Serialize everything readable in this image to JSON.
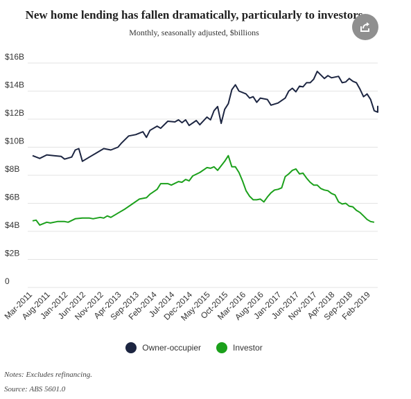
{
  "chart_data": {
    "type": "line",
    "title": "New home lending has fallen dramatically, particularly to investors",
    "subtitle": "Monthly, seasonally adjusted, $billions",
    "xlabel": "",
    "ylabel": "",
    "x_tick_labels": [
      "Mar-2011",
      "Aug-2011",
      "Jan-2012",
      "Jun-2012",
      "Nov-2012",
      "Apr-2013",
      "Sep-2013",
      "Feb-2014",
      "Jul-2014",
      "Dec-2014",
      "May-2015",
      "Oct-2015",
      "Mar-2016",
      "Aug-2016",
      "Jan-2017",
      "Jun-2017",
      "Nov-2017",
      "Apr-2018",
      "Sep-2018",
      "Feb-2019"
    ],
    "y_tick_labels": [
      "0",
      "$2B",
      "$4B",
      "$6B",
      "$8B",
      "$10B",
      "$12B",
      "$14B",
      "$16B"
    ],
    "y_ticks": [
      0,
      2,
      4,
      6,
      8,
      10,
      12,
      14,
      16
    ],
    "ylim": [
      0,
      16
    ],
    "x_range": [
      "Mar-2011",
      "Apr-2019"
    ],
    "grid": "horizontal",
    "legend_position": "bottom",
    "series": [
      {
        "name": "Owner-occupier",
        "color": "#1c2541",
        "points": [
          [
            "Mar-2011",
            9.4
          ],
          [
            "May-2011",
            9.2
          ],
          [
            "Jul-2011",
            9.45
          ],
          [
            "Sep-2011",
            9.4
          ],
          [
            "Nov-2011",
            9.35
          ],
          [
            "Dec-2011",
            9.15
          ],
          [
            "Feb-2012",
            9.3
          ],
          [
            "Mar-2012",
            9.8
          ],
          [
            "Apr-2012",
            9.9
          ],
          [
            "May-2012",
            9.0
          ],
          [
            "Jul-2012",
            9.3
          ],
          [
            "Sep-2012",
            9.6
          ],
          [
            "Nov-2012",
            9.9
          ],
          [
            "Jan-2013",
            9.8
          ],
          [
            "Mar-2013",
            10.0
          ],
          [
            "Apr-2013",
            10.3
          ],
          [
            "Jun-2013",
            10.8
          ],
          [
            "Aug-2013",
            10.9
          ],
          [
            "Oct-2013",
            11.1
          ],
          [
            "Nov-2013",
            10.7
          ],
          [
            "Dec-2013",
            11.2
          ],
          [
            "Feb-2014",
            11.5
          ],
          [
            "Mar-2014",
            11.35
          ],
          [
            "May-2014",
            11.85
          ],
          [
            "Jul-2014",
            11.8
          ],
          [
            "Aug-2014",
            11.95
          ],
          [
            "Sep-2014",
            11.75
          ],
          [
            "Oct-2014",
            11.95
          ],
          [
            "Nov-2014",
            11.55
          ],
          [
            "Jan-2015",
            11.9
          ],
          [
            "Feb-2015",
            11.6
          ],
          [
            "Apr-2015",
            12.15
          ],
          [
            "May-2015",
            11.95
          ],
          [
            "Jun-2015",
            12.6
          ],
          [
            "Jul-2015",
            12.9
          ],
          [
            "Aug-2015",
            11.7
          ],
          [
            "Sep-2015",
            12.7
          ],
          [
            "Oct-2015",
            13.1
          ],
          [
            "Nov-2015",
            14.1
          ],
          [
            "Dec-2015",
            14.45
          ],
          [
            "Jan-2016",
            14.0
          ],
          [
            "Mar-2016",
            13.8
          ],
          [
            "Apr-2016",
            13.5
          ],
          [
            "May-2016",
            13.6
          ],
          [
            "Jun-2016",
            13.2
          ],
          [
            "Jul-2016",
            13.5
          ],
          [
            "Sep-2016",
            13.4
          ],
          [
            "Oct-2016",
            13.0
          ],
          [
            "Dec-2016",
            13.15
          ],
          [
            "Feb-2017",
            13.5
          ],
          [
            "Mar-2017",
            14.0
          ],
          [
            "Apr-2017",
            14.2
          ],
          [
            "May-2017",
            13.95
          ],
          [
            "Jun-2017",
            14.35
          ],
          [
            "Jul-2017",
            14.3
          ],
          [
            "Aug-2017",
            14.6
          ],
          [
            "Sep-2017",
            14.6
          ],
          [
            "Oct-2017",
            14.85
          ],
          [
            "Nov-2017",
            15.4
          ],
          [
            "Jan-2018",
            14.9
          ],
          [
            "Feb-2018",
            15.1
          ],
          [
            "Mar-2018",
            14.95
          ],
          [
            "May-2018",
            15.05
          ],
          [
            "Jun-2018",
            14.6
          ],
          [
            "Jul-2018",
            14.65
          ],
          [
            "Aug-2018",
            14.9
          ],
          [
            "Sep-2018",
            14.7
          ],
          [
            "Oct-2018",
            14.6
          ],
          [
            "Nov-2018",
            14.15
          ],
          [
            "Dec-2018",
            13.6
          ],
          [
            "Jan-2019",
            13.8
          ],
          [
            "Feb-2019",
            13.4
          ],
          [
            "Mar-2019",
            12.6
          ],
          [
            "Apr-2019",
            12.5
          ],
          [
            "Apr-2019",
            12.95
          ]
        ]
      },
      {
        "name": "Investor",
        "color": "#1ba01b",
        "points": [
          [
            "Mar-2011",
            4.75
          ],
          [
            "Apr-2011",
            4.8
          ],
          [
            "May-2011",
            4.45
          ],
          [
            "Jul-2011",
            4.65
          ],
          [
            "Aug-2011",
            4.6
          ],
          [
            "Oct-2011",
            4.7
          ],
          [
            "Dec-2011",
            4.7
          ],
          [
            "Jan-2012",
            4.65
          ],
          [
            "Mar-2012",
            4.9
          ],
          [
            "May-2012",
            4.95
          ],
          [
            "Jul-2012",
            4.95
          ],
          [
            "Aug-2012",
            4.9
          ],
          [
            "Oct-2012",
            5.0
          ],
          [
            "Nov-2012",
            4.95
          ],
          [
            "Dec-2012",
            5.1
          ],
          [
            "Jan-2013",
            5.0
          ],
          [
            "Mar-2013",
            5.3
          ],
          [
            "May-2013",
            5.6
          ],
          [
            "Jul-2013",
            5.95
          ],
          [
            "Sep-2013",
            6.3
          ],
          [
            "Nov-2013",
            6.4
          ],
          [
            "Dec-2013",
            6.65
          ],
          [
            "Feb-2014",
            7.0
          ],
          [
            "Mar-2014",
            7.4
          ],
          [
            "May-2014",
            7.4
          ],
          [
            "Jun-2014",
            7.3
          ],
          [
            "Aug-2014",
            7.55
          ],
          [
            "Sep-2014",
            7.5
          ],
          [
            "Oct-2014",
            7.7
          ],
          [
            "Nov-2014",
            7.6
          ],
          [
            "Dec-2014",
            7.95
          ],
          [
            "Feb-2015",
            8.2
          ],
          [
            "Apr-2015",
            8.55
          ],
          [
            "May-2015",
            8.5
          ],
          [
            "Jun-2015",
            8.6
          ],
          [
            "Jul-2015",
            8.35
          ],
          [
            "Sep-2015",
            9.0
          ],
          [
            "Oct-2015",
            9.4
          ],
          [
            "Nov-2015",
            8.6
          ],
          [
            "Dec-2015",
            8.6
          ],
          [
            "Jan-2016",
            8.2
          ],
          [
            "Feb-2016",
            7.6
          ],
          [
            "Mar-2016",
            6.9
          ],
          [
            "Apr-2016",
            6.5
          ],
          [
            "May-2016",
            6.25
          ],
          [
            "Jun-2016",
            6.25
          ],
          [
            "Jul-2016",
            6.3
          ],
          [
            "Aug-2016",
            6.1
          ],
          [
            "Sep-2016",
            6.45
          ],
          [
            "Oct-2016",
            6.75
          ],
          [
            "Nov-2016",
            6.95
          ],
          [
            "Dec-2016",
            7.0
          ],
          [
            "Jan-2017",
            7.1
          ],
          [
            "Feb-2017",
            7.9
          ],
          [
            "Mar-2017",
            8.1
          ],
          [
            "Apr-2017",
            8.35
          ],
          [
            "May-2017",
            8.45
          ],
          [
            "Jun-2017",
            8.1
          ],
          [
            "Jul-2017",
            8.15
          ],
          [
            "Aug-2017",
            7.8
          ],
          [
            "Sep-2017",
            7.5
          ],
          [
            "Oct-2017",
            7.3
          ],
          [
            "Nov-2017",
            7.3
          ],
          [
            "Dec-2017",
            7.05
          ],
          [
            "Jan-2018",
            6.95
          ],
          [
            "Feb-2018",
            6.9
          ],
          [
            "Mar-2018",
            6.7
          ],
          [
            "Apr-2018",
            6.6
          ],
          [
            "May-2018",
            6.1
          ],
          [
            "Jun-2018",
            5.95
          ],
          [
            "Jul-2018",
            6.0
          ],
          [
            "Aug-2018",
            5.8
          ],
          [
            "Sep-2018",
            5.75
          ],
          [
            "Oct-2018",
            5.5
          ],
          [
            "Nov-2018",
            5.35
          ],
          [
            "Dec-2018",
            5.1
          ],
          [
            "Jan-2019",
            4.85
          ],
          [
            "Feb-2019",
            4.7
          ],
          [
            "Mar-2019",
            4.65
          ]
        ]
      }
    ]
  },
  "share_icon": "share-icon",
  "notes": {
    "note": "Notes: Excludes refinancing.",
    "source": "Source: ABS 5601.0"
  }
}
